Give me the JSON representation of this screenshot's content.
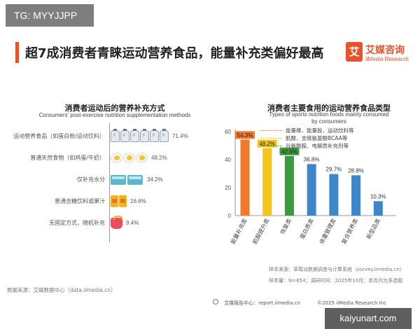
{
  "tg_badge": "TG: MYYJJPP",
  "page_title": "超7成消费者青睐运动营养食品，能量补充类偏好最高",
  "logo": {
    "cn": "艾媒咨询",
    "en": "iiMedia Research",
    "mark": "艾"
  },
  "colors": {
    "accent": "#e8522b",
    "blue": "#3e86c9",
    "orange": "#f07a2a",
    "yellow": "#f5c518",
    "green": "#3a9a3e"
  },
  "chart_data": [
    {
      "type": "bar",
      "orientation": "horizontal",
      "title": "消费者运动后的营养补充方式",
      "subtitle": "Consumers' post-exercise nutrition supplementation methods",
      "categories": [
        "运动营养食品（如蛋白粉/运动饮料）",
        "普通天然食物（如鸡蛋/牛奶）",
        "仅补充水分",
        "普通含糖饮料或果汁",
        "无固定方式，随机补充"
      ],
      "values": [
        71.4,
        48.2,
        34.2,
        16.6,
        9.4
      ],
      "value_labels": [
        "71.4%",
        "48.2%",
        "34.2%",
        "16.6%",
        "9.4%"
      ],
      "icons": [
        "bottle-icon",
        "egg-icon",
        "water-icon",
        "can-icon",
        "snack-bag-icon"
      ],
      "xlim": [
        0,
        100
      ]
    },
    {
      "type": "bar",
      "title": "消费者主要食用的运动营养食品类型",
      "subtitle_lines": [
        "Types of sports nutrition foods mainly consumed",
        "by consumers"
      ],
      "categories": [
        "能量补充类",
        "肌酸提升类",
        "恢复类",
        "蛋白质类",
        "体重管理类",
        "复合营养类",
        "新型品类"
      ],
      "values": [
        54.3,
        48.2,
        42.6,
        36.8,
        29.7,
        28.8,
        10.3
      ],
      "value_labels": [
        "54.3%",
        "48.2%",
        "42.6%",
        "36.8%",
        "29.7%",
        "28.8%",
        "10.3%"
      ],
      "bar_colors": [
        "#f07a2a",
        "#f5c518",
        "#3a9a3e",
        "#3e86c9",
        "#3e86c9",
        "#3e86c9",
        "#3e86c9"
      ],
      "highlight_label_colors": [
        "#f07a2a",
        "#f5c518",
        "#3a9a3e"
      ],
      "annotations": [
        "能量棒、能量胶、运动饮料等",
        "肌酸、支链氨基酸BCAA等",
        "谷氨酰胺、电解质补充剂等"
      ],
      "yticks": [
        0,
        20,
        40,
        60
      ],
      "ylim": [
        0,
        60
      ]
    }
  ],
  "footer": {
    "source_left": "数据来源：艾媒数据中心（data.iimedia.cn）",
    "note_line1": "样本来源：草莓派数据调查与计算系统（survey.iimedia.cn）",
    "note_line2": "样本量：N=854；调研时间：2025年10月；本页内为多选题",
    "bar_report": "艾媒报告中心：report.iimedia.cn",
    "bar_copyright": "©2025  iiMedia Research  Inc"
  },
  "watermark": "kaiyunart.com"
}
